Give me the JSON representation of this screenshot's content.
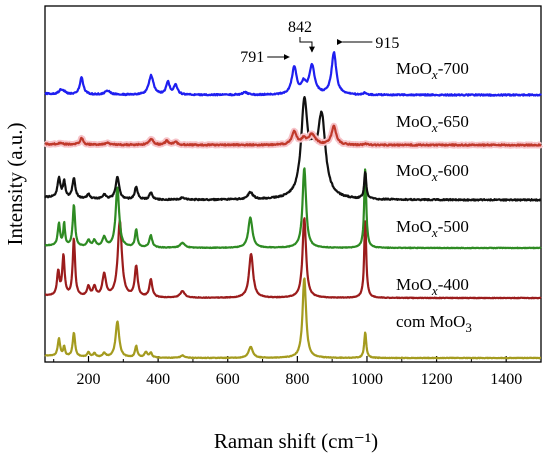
{
  "chart_data": {
    "type": "line",
    "xlabel": "Raman shift (cm⁻¹)",
    "ylabel": "Intensity (a.u.)",
    "xlim": [
      75,
      1500
    ],
    "xticks": [
      200,
      400,
      600,
      800,
      1000,
      1200,
      1400
    ],
    "y_ticks_shown": false,
    "grid": false,
    "legend": "none (inline labels at right of each curve)",
    "annotations": [
      {
        "text": "791",
        "x": 791
      },
      {
        "text": "842",
        "x": 842
      },
      {
        "text": "915",
        "x": 915
      }
    ],
    "series": [
      {
        "name": "com MoO3",
        "label_main": "com MoO",
        "label_sub": "3",
        "color": "#a49b1f",
        "offset": 0,
        "peaks": [
          [
            820,
            1.0,
            6
          ],
          [
            995,
            0.32,
            3.5
          ],
          [
            283,
            0.45,
            6
          ],
          [
            158,
            0.3,
            4
          ],
          [
            115,
            0.22,
            4
          ],
          [
            130,
            0.12,
            3
          ],
          [
            337,
            0.14,
            4
          ],
          [
            365,
            0.07,
            5
          ],
          [
            379,
            0.06,
            4
          ],
          [
            666,
            0.14,
            7
          ],
          [
            470,
            0.03,
            6
          ],
          [
            200,
            0.06,
            4
          ],
          [
            217,
            0.05,
            4
          ],
          [
            245,
            0.05,
            5
          ]
        ]
      },
      {
        "name": "MoOx-400",
        "label_main": "MoO",
        "label_sub": "x",
        "label_tail": "-400",
        "color": "#9b1c1c",
        "offset": 1,
        "peaks": [
          [
            820,
            1.0,
            6
          ],
          [
            995,
            0.98,
            3.5
          ],
          [
            290,
            0.95,
            7
          ],
          [
            158,
            0.72,
            4
          ],
          [
            128,
            0.5,
            4
          ],
          [
            113,
            0.3,
            4
          ],
          [
            245,
            0.28,
            6
          ],
          [
            337,
            0.38,
            5
          ],
          [
            379,
            0.22,
            5
          ],
          [
            667,
            0.55,
            7
          ],
          [
            470,
            0.08,
            8
          ],
          [
            200,
            0.12,
            5
          ],
          [
            217,
            0.12,
            5
          ]
        ]
      },
      {
        "name": "MoOx-500",
        "label_main": "MoO",
        "label_sub": "x",
        "label_tail": "-500",
        "color": "#2e8b23",
        "offset": 2,
        "peaks": [
          [
            820,
            1.0,
            6
          ],
          [
            995,
            1.0,
            3.5
          ],
          [
            283,
            0.75,
            6
          ],
          [
            158,
            0.52,
            4
          ],
          [
            115,
            0.28,
            4
          ],
          [
            130,
            0.28,
            3
          ],
          [
            337,
            0.22,
            4
          ],
          [
            379,
            0.15,
            5
          ],
          [
            665,
            0.38,
            7
          ],
          [
            470,
            0.06,
            8
          ],
          [
            200,
            0.08,
            5
          ],
          [
            217,
            0.08,
            5
          ],
          [
            245,
            0.12,
            6
          ]
        ]
      },
      {
        "name": "MoOx-600",
        "label_main": "MoO",
        "label_sub": "x",
        "label_tail": "-600",
        "color": "#111111",
        "offset": 3,
        "peaks": [
          [
            820,
            1.0,
            11
          ],
          [
            870,
            0.85,
            13
          ],
          [
            845,
            0.35,
            14
          ],
          [
            995,
            0.3,
            3.5
          ],
          [
            283,
            0.25,
            6
          ],
          [
            158,
            0.22,
            5
          ],
          [
            115,
            0.22,
            5
          ],
          [
            130,
            0.18,
            4
          ],
          [
            337,
            0.14,
            5
          ],
          [
            379,
            0.08,
            5
          ],
          [
            665,
            0.08,
            8
          ],
          [
            200,
            0.05,
            5
          ],
          [
            245,
            0.05,
            6
          ],
          [
            470,
            0.02,
            8
          ]
        ]
      },
      {
        "name": "MoOx-650",
        "label_main": "MoO",
        "label_sub": "x",
        "label_tail": "-650",
        "color": "#c0392b",
        "glow": "#f6c3c9",
        "offset": 4,
        "peaks": [
          [
            905,
            0.55,
            8
          ],
          [
            791,
            0.38,
            8
          ],
          [
            842,
            0.3,
            12
          ],
          [
            818,
            0.15,
            8
          ],
          [
            180,
            0.2,
            5
          ],
          [
            380,
            0.18,
            7
          ],
          [
            425,
            0.12,
            6
          ],
          [
            450,
            0.1,
            6
          ],
          [
            255,
            0.05,
            8
          ],
          [
            120,
            0.05,
            6
          ],
          [
            995,
            0.04,
            4
          ]
        ]
      },
      {
        "name": "MoOx-700",
        "label_main": "MoO",
        "label_sub": "x",
        "label_tail": "-700",
        "color": "#1f1ff0",
        "offset": 5,
        "peaks": [
          [
            905,
            1.05,
            8
          ],
          [
            842,
            0.72,
            9
          ],
          [
            791,
            0.68,
            8
          ],
          [
            818,
            0.25,
            8
          ],
          [
            180,
            0.42,
            6
          ],
          [
            380,
            0.48,
            8
          ],
          [
            428,
            0.32,
            6
          ],
          [
            450,
            0.25,
            6
          ],
          [
            255,
            0.1,
            8
          ],
          [
            120,
            0.1,
            6
          ],
          [
            130,
            0.06,
            6
          ],
          [
            650,
            0.06,
            10
          ],
          [
            995,
            0.05,
            5
          ]
        ]
      }
    ]
  }
}
